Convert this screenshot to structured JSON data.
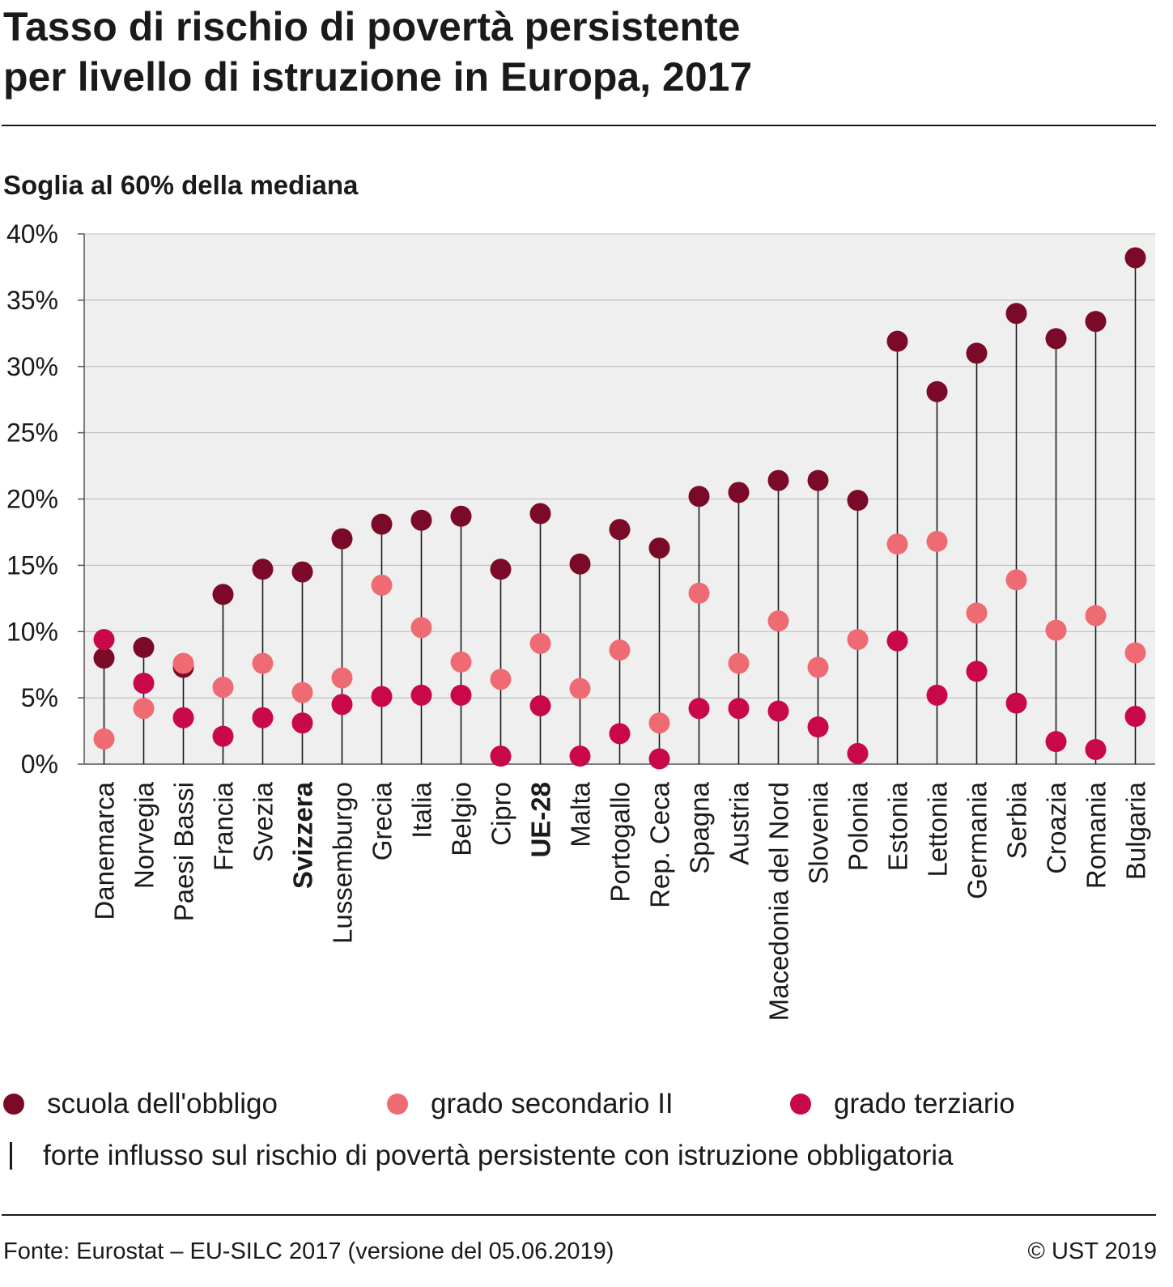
{
  "title_line1": "Tasso di rischio di povertà persistente",
  "title_line2": "per livello di istruzione in Europa, 2017",
  "subtitle": "Soglia al 60% della mediana",
  "legend": {
    "compulsory": "scuola dell'obbligo",
    "secondary": "grado secondario II",
    "tertiary": "grado terziario",
    "line_note": "forte influsso sul rischio di povertà persistente con istruzione obbligatoria"
  },
  "footer": {
    "source": "Fonte: Eurostat – EU-SILC 2017 (versione del 05.06.2019)",
    "copyright": "© UST 2019"
  },
  "colors": {
    "compulsory": "#7a0a28",
    "secondary": "#ef6b73",
    "tertiary": "#c9084a",
    "plot_bg": "#efefef",
    "line": "#1a1a1a"
  },
  "chart_data": {
    "type": "scatter",
    "ylim": [
      0,
      40
    ],
    "yticks": [
      "0%",
      "5%",
      "10%",
      "15%",
      "20%",
      "25%",
      "30%",
      "35%",
      "40%"
    ],
    "categories": [
      "Danemarca",
      "Norvegia",
      "Paesi Bassi",
      "Francia",
      "Svezia",
      "Svizzera",
      "Lussemburgo",
      "Grecia",
      "Italia",
      "Belgio",
      "Cipro",
      "UE-28",
      "Malta",
      "Portogallo",
      "Rep. Ceca",
      "Spagna",
      "Austria",
      "Macedonia del Nord",
      "Slovenia",
      "Polonia",
      "Estonia",
      "Lettonia",
      "Germania",
      "Serbia",
      "Croazia",
      "Romania",
      "Bulgaria"
    ],
    "bold_categories": [
      "Svizzera",
      "UE-28"
    ],
    "series": [
      {
        "name": "scuola dell'obbligo",
        "values": [
          8.0,
          8.8,
          7.3,
          12.8,
          14.7,
          14.5,
          17.0,
          18.1,
          18.4,
          18.7,
          14.7,
          18.9,
          15.1,
          17.7,
          16.3,
          20.2,
          20.5,
          21.4,
          21.4,
          19.9,
          31.9,
          28.1,
          31.0,
          34.0,
          32.1,
          33.4,
          38.2
        ]
      },
      {
        "name": "grado secondario II",
        "values": [
          1.9,
          4.2,
          7.6,
          5.8,
          7.6,
          5.4,
          6.5,
          13.5,
          10.3,
          7.7,
          6.4,
          9.1,
          5.7,
          8.6,
          3.1,
          12.9,
          7.6,
          10.8,
          7.3,
          9.4,
          16.6,
          16.8,
          11.4,
          13.9,
          10.1,
          11.2,
          8.4
        ]
      },
      {
        "name": "grado terziario",
        "values": [
          9.4,
          6.1,
          3.5,
          2.1,
          3.5,
          3.1,
          4.5,
          5.1,
          5.2,
          5.2,
          0.6,
          4.4,
          0.6,
          2.3,
          0.4,
          4.2,
          4.2,
          4.0,
          2.8,
          0.8,
          9.3,
          5.2,
          7.0,
          4.6,
          1.7,
          1.1,
          3.6
        ]
      }
    ],
    "range_line_from": "scuola dell'obbligo",
    "range_line_to": 0,
    "grid": true,
    "legend_position": "bottom"
  }
}
